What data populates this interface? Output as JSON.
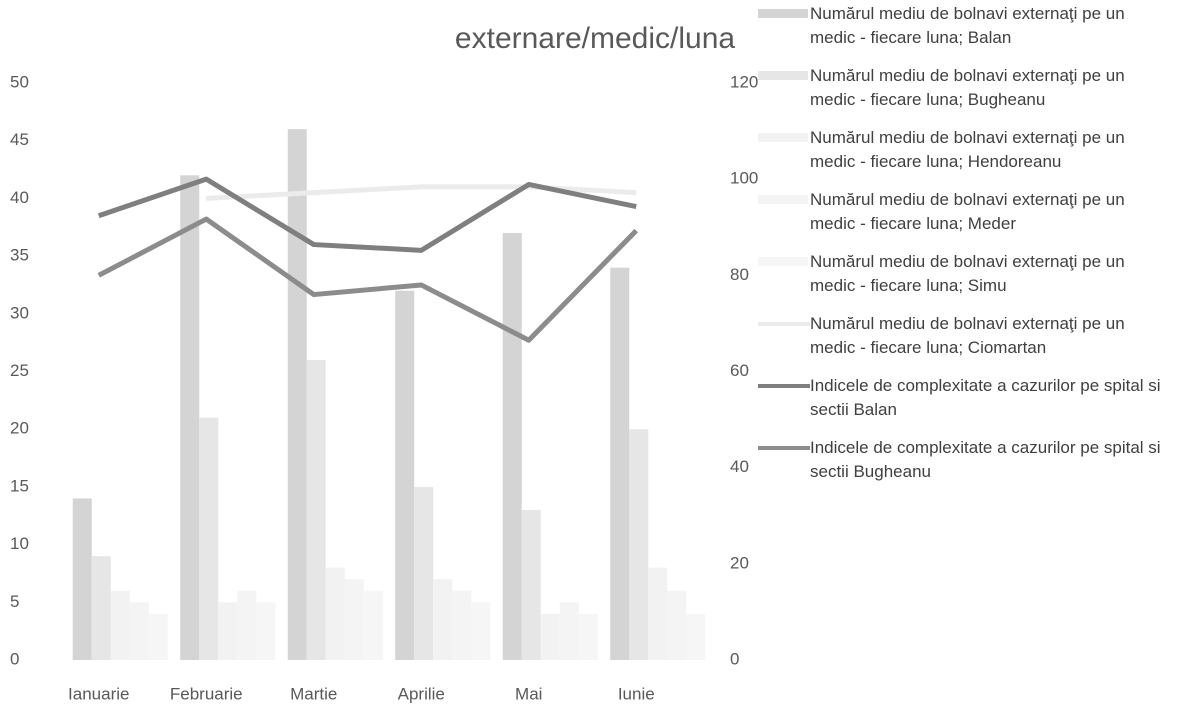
{
  "chart_data": {
    "type": "bar",
    "title": "externare/medic/luna",
    "categories": [
      "Ianuarie",
      "Februarie",
      "Martie",
      "Aprilie",
      "Mai",
      "Iunie"
    ],
    "series": [
      {
        "name": "Numărul mediu de bolnavi externaţi pe un medic - fiecare luna;  Balan",
        "color": "#d4d4d4",
        "type": "bar",
        "values": [
          14,
          42,
          46,
          32,
          37,
          34
        ]
      },
      {
        "name": "Numărul mediu de bolnavi externaţi pe un medic - fiecare luna;  Bugheanu",
        "color": "#e6e6e6",
        "type": "bar",
        "values": [
          9,
          21,
          26,
          15,
          13,
          20
        ]
      },
      {
        "name": "Numărul mediu de bolnavi externaţi pe un medic - fiecare luna;  Hendoreanu",
        "color": "#f2f2f2",
        "type": "bar",
        "values": [
          6,
          5,
          8,
          7,
          4,
          8
        ]
      },
      {
        "name": "Numărul mediu de bolnavi externaţi pe un medic - fiecare luna;  Meder",
        "color": "#f4f4f4",
        "type": "bar",
        "values": [
          5,
          6,
          7,
          6,
          5,
          6
        ]
      },
      {
        "name": "Numărul mediu de bolnavi externaţi pe un medic - fiecare luna;  Simu",
        "color": "#f6f6f6",
        "type": "bar",
        "values": [
          4,
          5,
          6,
          5,
          4,
          4
        ]
      },
      {
        "name": "Numărul mediu de bolnavi externaţi pe un medic - fiecare luna;  Ciomartan",
        "color": "#ebebeb",
        "type": "line",
        "values": [
          null,
          40,
          40.5,
          41,
          41,
          40.5
        ]
      },
      {
        "name": "Indicele de complexitate a cazurilor pe spital si sectii Balan",
        "color": "#7f7f7f",
        "type": "line",
        "axis": "y2",
        "values": [
          92.4,
          100,
          86.4,
          85.2,
          98.9,
          94.3
        ]
      },
      {
        "name": "Indicele de complexitate a cazurilor pe spital si sectii Bugheanu",
        "color": "#8c8c8c",
        "type": "line",
        "axis": "y2",
        "values": [
          80,
          91.7,
          76,
          78,
          66.5,
          89.3
        ]
      }
    ],
    "ylim": [
      0,
      50
    ],
    "yticks": [
      0,
      5,
      10,
      15,
      20,
      25,
      30,
      35,
      40,
      45,
      50
    ],
    "y2lim": [
      0,
      120
    ],
    "y2ticks": [
      0,
      20,
      40,
      60,
      80,
      100,
      120
    ]
  }
}
